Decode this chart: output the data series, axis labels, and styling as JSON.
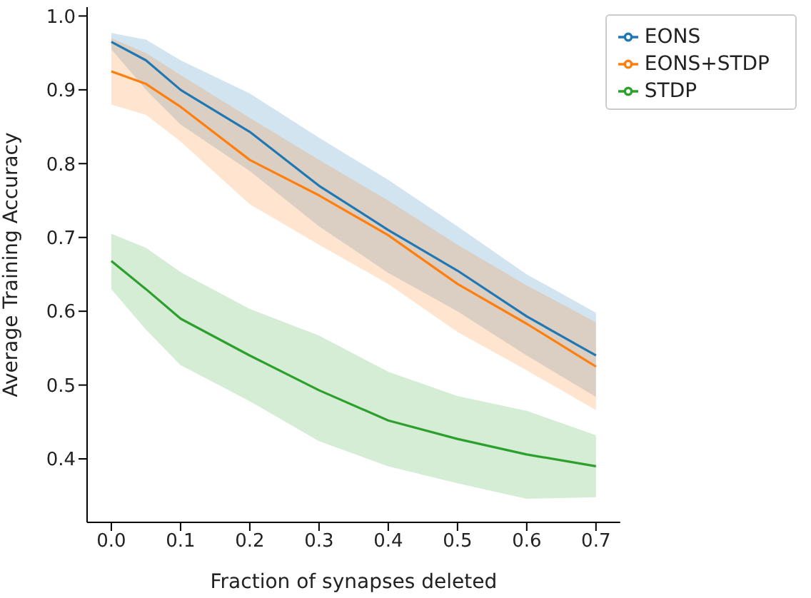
{
  "chart_data": {
    "type": "line",
    "xlabel": "Fraction of synapses deleted",
    "ylabel": "Average Training Accuracy",
    "x": [
      0,
      0.05,
      0.1,
      0.2,
      0.3,
      0.4,
      0.5,
      0.6,
      0.7
    ],
    "series": [
      {
        "name": "EONS",
        "color": "#1f77b4",
        "values": [
          0.965,
          0.94,
          0.9,
          0.843,
          0.77,
          0.71,
          0.655,
          0.593,
          0.54
        ],
        "lower": [
          0.955,
          0.9,
          0.853,
          0.79,
          0.715,
          0.652,
          0.6,
          0.54,
          0.484
        ],
        "upper": [
          0.977,
          0.968,
          0.94,
          0.895,
          0.835,
          0.778,
          0.715,
          0.65,
          0.598
        ]
      },
      {
        "name": "EONS+STDP",
        "color": "#ff7f0e",
        "values": [
          0.925,
          0.908,
          0.877,
          0.805,
          0.757,
          0.703,
          0.637,
          0.583,
          0.525
        ],
        "lower": [
          0.88,
          0.866,
          0.83,
          0.745,
          0.69,
          0.637,
          0.572,
          0.52,
          0.466
        ],
        "upper": [
          0.97,
          0.95,
          0.92,
          0.862,
          0.805,
          0.75,
          0.69,
          0.635,
          0.585
        ]
      },
      {
        "name": "STDP",
        "color": "#2ca02c",
        "values": [
          0.668,
          0.63,
          0.59,
          0.54,
          0.493,
          0.452,
          0.427,
          0.406,
          0.39
        ],
        "lower": [
          0.63,
          0.575,
          0.527,
          0.478,
          0.424,
          0.39,
          0.367,
          0.346,
          0.348
        ],
        "upper": [
          0.705,
          0.686,
          0.653,
          0.603,
          0.567,
          0.518,
          0.485,
          0.465,
          0.432
        ]
      }
    ],
    "xlim": [
      -0.035,
      0.735
    ],
    "xticks": [
      {
        "value": 0,
        "label": "0.0"
      },
      0.1,
      0.2,
      0.3,
      0.4,
      0.5,
      0.6,
      0.7
    ],
    "ylim": [
      0.314,
      1.012
    ],
    "yticks": [
      0.4,
      0.5,
      0.6,
      0.7,
      0.8,
      0.9,
      {
        "value": 1,
        "label": "1.0"
      }
    ],
    "grid": false,
    "legend": "top right",
    "marker": "none",
    "line_style": "solid"
  }
}
